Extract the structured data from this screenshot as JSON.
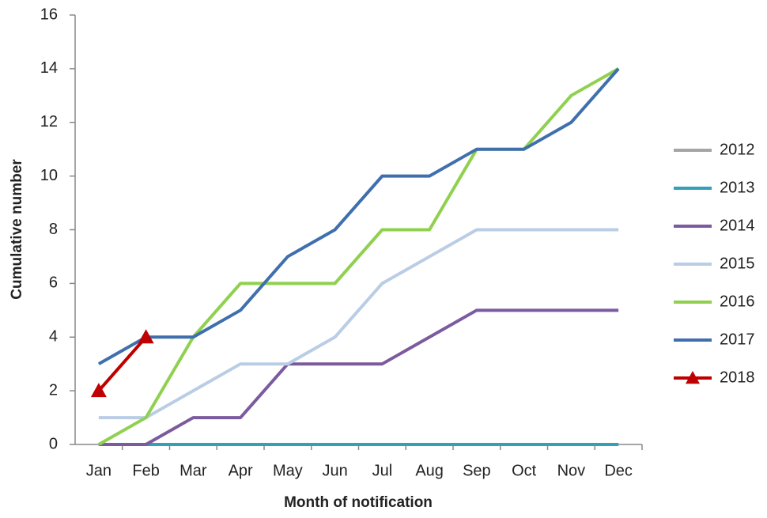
{
  "chart_data": {
    "type": "line",
    "x_label": "Month of notification",
    "y_label": "Cumulative number",
    "categories": [
      "Jan",
      "Feb",
      "Mar",
      "Apr",
      "May",
      "Jun",
      "Jul",
      "Aug",
      "Sep",
      "Oct",
      "Nov",
      "Dec"
    ],
    "ylim": [
      0,
      16
    ],
    "yticks": [
      0,
      2,
      4,
      6,
      8,
      10,
      12,
      14,
      16
    ],
    "grid": false,
    "legend": "right",
    "series": [
      {
        "name": "2012",
        "color": "#a5a5a5",
        "values": [
          0,
          0,
          0,
          0,
          0,
          0,
          0,
          0,
          0,
          0,
          0,
          0
        ]
      },
      {
        "name": "2013",
        "color": "#31a0b8",
        "values": [
          0,
          0,
          0,
          0,
          0,
          0,
          0,
          0,
          0,
          0,
          0,
          0
        ]
      },
      {
        "name": "2014",
        "color": "#7b5a9e",
        "values": [
          0,
          0,
          1,
          1,
          3,
          3,
          3,
          4,
          5,
          5,
          5,
          5
        ]
      },
      {
        "name": "2015",
        "color": "#b9cde5",
        "values": [
          1,
          1,
          2,
          3,
          3,
          4,
          6,
          7,
          8,
          8,
          8,
          8
        ]
      },
      {
        "name": "2016",
        "color": "#8fd14f",
        "values": [
          0,
          1,
          4,
          6,
          6,
          6,
          8,
          8,
          11,
          11,
          13,
          14
        ]
      },
      {
        "name": "2017",
        "color": "#3f6fad",
        "values": [
          3,
          4,
          4,
          5,
          7,
          8,
          10,
          10,
          11,
          11,
          12,
          14
        ]
      },
      {
        "name": "2018",
        "color": "#c00000",
        "marker": "triangle",
        "values": [
          2,
          4,
          null,
          null,
          null,
          null,
          null,
          null,
          null,
          null,
          null,
          null
        ]
      }
    ]
  }
}
